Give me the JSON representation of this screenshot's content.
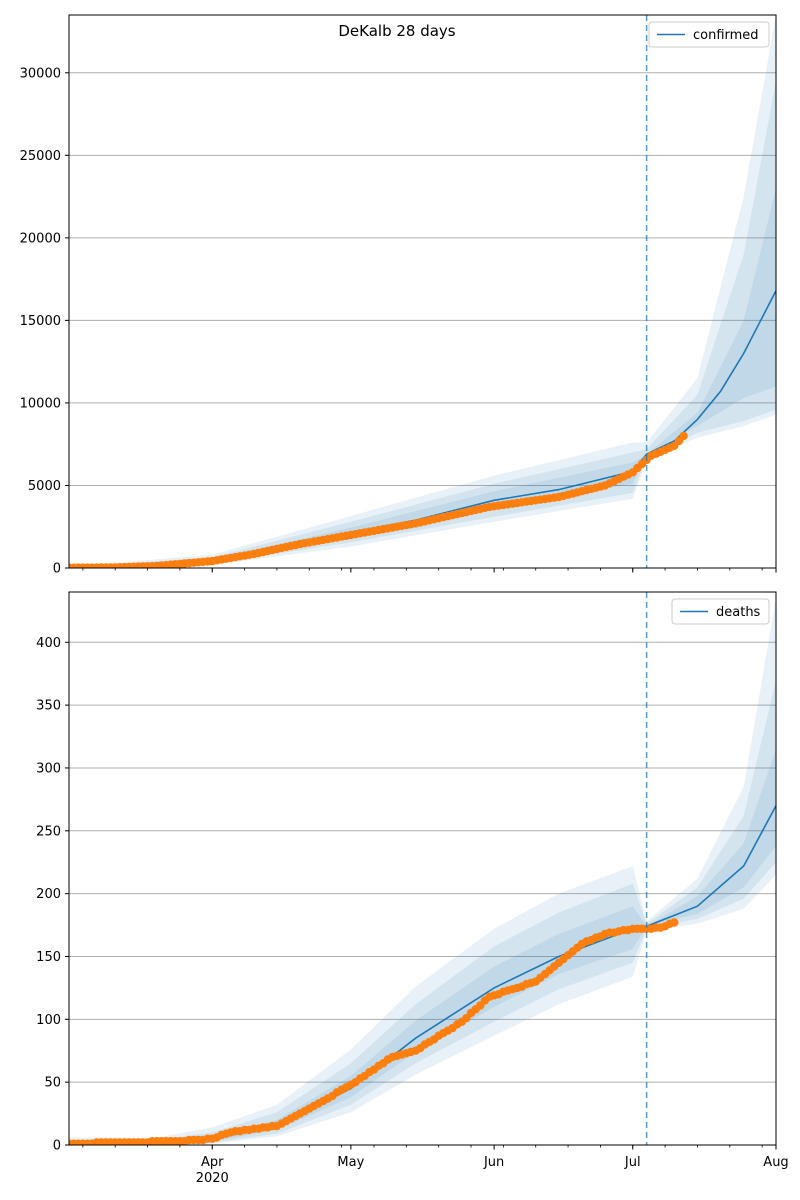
{
  "figure_title": "DeKalb 28 days",
  "colors": {
    "model": "#1f77b4",
    "observed": "#ff7f0e",
    "band": "#1f77b4",
    "grid": "#b0b0b0",
    "vline": "#1f77b4"
  },
  "x_axis": {
    "start": "2020-03-01",
    "end": "2020-08-01",
    "ticks": [
      {
        "date": "2020-04-01",
        "label": "Apr",
        "sublabel": "2020"
      },
      {
        "date": "2020-05-01",
        "label": "May",
        "sublabel": ""
      },
      {
        "date": "2020-06-01",
        "label": "Jun",
        "sublabel": ""
      },
      {
        "date": "2020-07-01",
        "label": "Jul",
        "sublabel": ""
      },
      {
        "date": "2020-08-01",
        "label": "Aug",
        "sublabel": ""
      }
    ]
  },
  "forecast_date": "2020-07-04",
  "chart_data": [
    {
      "type": "line",
      "name": "confirmed",
      "legend": "confirmed",
      "legend_position": "upper right",
      "grid": "horizontal",
      "ylim": [
        0,
        33500
      ],
      "yticks": [
        0,
        5000,
        10000,
        15000,
        20000,
        25000,
        30000
      ],
      "observed": {
        "dates": [
          "2020-03-01",
          "2020-03-10",
          "2020-03-20",
          "2020-03-25",
          "2020-04-01",
          "2020-04-10",
          "2020-04-15",
          "2020-04-20",
          "2020-04-30",
          "2020-05-15",
          "2020-05-31",
          "2020-06-15",
          "2020-06-25",
          "2020-07-01",
          "2020-07-05",
          "2020-07-10",
          "2020-07-12"
        ],
        "values": [
          20,
          30,
          120,
          250,
          420,
          850,
          1150,
          1450,
          1950,
          2700,
          3700,
          4300,
          5000,
          5800,
          6800,
          7400,
          8000
        ]
      },
      "model": {
        "dates": [
          "2020-03-01",
          "2020-03-15",
          "2020-04-01",
          "2020-04-15",
          "2020-05-01",
          "2020-05-15",
          "2020-06-01",
          "2020-06-15",
          "2020-07-01",
          "2020-07-04",
          "2020-07-10",
          "2020-07-15",
          "2020-07-20",
          "2020-07-25",
          "2020-08-01"
        ],
        "values": [
          20,
          40,
          450,
          1300,
          2150,
          2900,
          4100,
          4750,
          5850,
          6900,
          7700,
          9000,
          10700,
          13000,
          16800
        ]
      },
      "bands": [
        {
          "dates": [
            "2020-03-01",
            "2020-04-01",
            "2020-05-01",
            "2020-06-01",
            "2020-07-01",
            "2020-07-04",
            "2020-07-15",
            "2020-07-25",
            "2020-08-01"
          ],
          "lower": [
            0,
            350,
            1850,
            3550,
            5100,
            6900,
            8600,
            10300,
            11000
          ],
          "upper": [
            40,
            550,
            2450,
            4650,
            6400,
            6900,
            9400,
            15000,
            23000
          ]
        },
        {
          "dates": [
            "2020-03-01",
            "2020-04-01",
            "2020-05-01",
            "2020-06-01",
            "2020-07-01",
            "2020-07-04",
            "2020-07-15",
            "2020-07-25",
            "2020-08-01"
          ],
          "lower": [
            0,
            250,
            1550,
            3100,
            4550,
            6700,
            8200,
            8900,
            9600
          ],
          "upper": [
            60,
            650,
            2800,
            5100,
            7000,
            7200,
            10500,
            19000,
            29500
          ]
        },
        {
          "dates": [
            "2020-03-01",
            "2020-04-01",
            "2020-05-01",
            "2020-06-01",
            "2020-07-01",
            "2020-07-04",
            "2020-07-15",
            "2020-07-25",
            "2020-08-01"
          ],
          "lower": [
            0,
            180,
            1300,
            2800,
            4200,
            6500,
            7900,
            8600,
            9300
          ],
          "upper": [
            90,
            800,
            3150,
            5600,
            7600,
            7600,
            11500,
            22500,
            33500
          ]
        }
      ]
    },
    {
      "type": "line",
      "name": "deaths",
      "legend": "deaths",
      "legend_position": "upper right",
      "grid": "horizontal",
      "ylim": [
        0,
        440
      ],
      "yticks": [
        0,
        50,
        100,
        150,
        200,
        250,
        300,
        350,
        400
      ],
      "observed": {
        "dates": [
          "2020-03-01",
          "2020-03-25",
          "2020-04-01",
          "2020-04-05",
          "2020-04-15",
          "2020-04-20",
          "2020-04-25",
          "2020-05-01",
          "2020-05-10",
          "2020-05-15",
          "2020-05-25",
          "2020-05-31",
          "2020-06-10",
          "2020-06-20",
          "2020-06-25",
          "2020-07-01",
          "2020-07-05",
          "2020-07-08",
          "2020-07-10"
        ],
        "values": [
          1,
          3,
          5,
          10,
          15,
          25,
          35,
          48,
          70,
          75,
          98,
          118,
          130,
          160,
          168,
          172,
          172,
          174,
          177
        ]
      },
      "model": {
        "dates": [
          "2020-03-01",
          "2020-03-20",
          "2020-04-01",
          "2020-04-15",
          "2020-05-01",
          "2020-05-15",
          "2020-06-01",
          "2020-06-15",
          "2020-07-01",
          "2020-07-04",
          "2020-07-15",
          "2020-07-25",
          "2020-08-01"
        ],
        "values": [
          1,
          1,
          5,
          15,
          45,
          85,
          125,
          150,
          172,
          174,
          190,
          222,
          270
        ]
      },
      "bands": [
        {
          "dates": [
            "2020-03-01",
            "2020-03-20",
            "2020-04-01",
            "2020-04-15",
            "2020-05-01",
            "2020-05-15",
            "2020-06-01",
            "2020-06-15",
            "2020-07-01",
            "2020-07-04",
            "2020-07-15",
            "2020-07-25",
            "2020-08-01"
          ],
          "lower": [
            0,
            0,
            3,
            12,
            38,
            74,
            110,
            136,
            156,
            174,
            184,
            205,
            238
          ],
          "upper": [
            2,
            2,
            7,
            20,
            55,
            99,
            142,
            168,
            190,
            174,
            198,
            240,
            315
          ]
        },
        {
          "dates": [
            "2020-03-01",
            "2020-03-20",
            "2020-04-01",
            "2020-04-15",
            "2020-05-01",
            "2020-05-15",
            "2020-06-01",
            "2020-06-15",
            "2020-07-01",
            "2020-07-04",
            "2020-07-15",
            "2020-07-25",
            "2020-08-01"
          ],
          "lower": [
            0,
            0,
            2,
            9,
            32,
            65,
            98,
            124,
            145,
            172,
            180,
            196,
            225
          ],
          "upper": [
            4,
            4,
            10,
            26,
            65,
            112,
            158,
            185,
            208,
            176,
            205,
            262,
            370
          ]
        },
        {
          "dates": [
            "2020-03-01",
            "2020-03-20",
            "2020-04-01",
            "2020-04-15",
            "2020-05-01",
            "2020-05-15",
            "2020-06-01",
            "2020-06-15",
            "2020-07-01",
            "2020-07-04",
            "2020-07-15",
            "2020-07-25",
            "2020-08-01"
          ],
          "lower": [
            0,
            0,
            1,
            7,
            26,
            56,
            87,
            112,
            134,
            170,
            176,
            188,
            215
          ],
          "upper": [
            6,
            6,
            14,
            32,
            76,
            126,
            172,
            200,
            222,
            178,
            212,
            285,
            435
          ]
        }
      ]
    }
  ]
}
